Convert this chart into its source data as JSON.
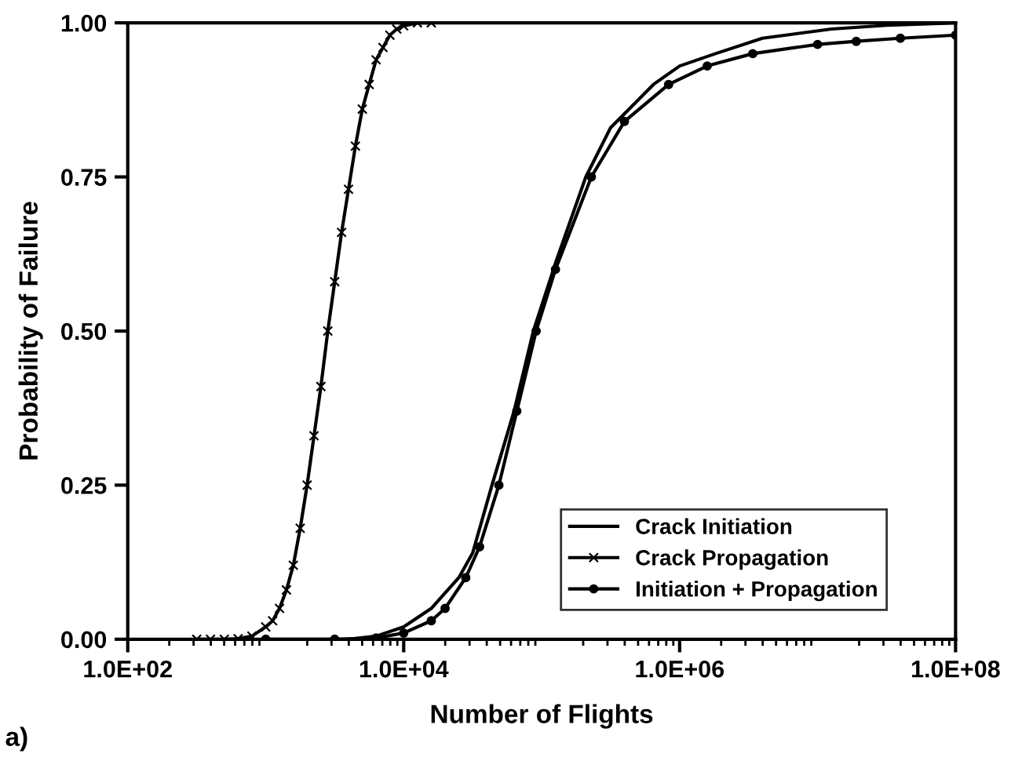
{
  "chart_data": {
    "type": "line",
    "xlabel": "Number of Flights",
    "ylabel": "Probability of Failure",
    "log": "x",
    "xlim": [
      100,
      100000000
    ],
    "xticks": [
      {
        "value": 100,
        "label": "1.0E+02"
      },
      {
        "value": 10000,
        "label": "1.0E+04"
      },
      {
        "value": 1000000,
        "label": "1.0E+06"
      },
      {
        "value": 100000000,
        "label": "1.0E+08"
      }
    ],
    "ylim": [
      0,
      1
    ],
    "yticks": [
      {
        "value": 0,
        "label": "0.00"
      },
      {
        "value": 0.25,
        "label": "0.25"
      },
      {
        "value": 0.5,
        "label": "0.50"
      },
      {
        "value": 0.75,
        "label": "0.75"
      },
      {
        "value": 1,
        "label": "1.00"
      }
    ],
    "grid": false,
    "legend": "bottom right",
    "line_style": "solid",
    "annotations": [
      "a)"
    ],
    "series": [
      {
        "name": "Crack Initiation",
        "color": "#000000",
        "marker": "none",
        "x": [
          3981,
          6310,
          10000,
          15849,
          25119,
          31623,
          43652,
          63096,
          87096,
          125893,
          208930,
          316228,
          645654,
          1000000,
          1819701,
          3981072,
          12589254,
          31622777,
          100000000
        ],
        "values": [
          0,
          0.005,
          0.02,
          0.05,
          0.1,
          0.14,
          0.25,
          0.37,
          0.5,
          0.61,
          0.75,
          0.83,
          0.9,
          0.93,
          0.95,
          0.975,
          0.99,
          0.996,
          1.0
        ]
      },
      {
        "name": "Crack Propagation",
        "color": "#000000",
        "marker": "cross",
        "x": [
          316,
          398,
          501,
          631,
          794,
          1000,
          1122,
          1259,
          1413,
          1585,
          1778,
          1995,
          2239,
          2512,
          2818,
          3162,
          3548,
          3981,
          4467,
          5012,
          5623,
          6310,
          7079,
          7943,
          8913,
          10000,
          12589,
          15849
        ],
        "values": [
          0,
          0,
          0,
          0.001,
          0.005,
          0.02,
          0.03,
          0.05,
          0.08,
          0.12,
          0.18,
          0.25,
          0.33,
          0.41,
          0.5,
          0.58,
          0.66,
          0.73,
          0.8,
          0.86,
          0.9,
          0.94,
          0.96,
          0.98,
          0.99,
          0.995,
          1.0,
          1.0
        ]
      },
      {
        "name": "Initiation + Propagation",
        "color": "#000000",
        "marker": "circle",
        "x": [
          1000,
          3162,
          6310,
          10000,
          15849,
          19953,
          28184,
          35481,
          48978,
          66069,
          91201,
          125893,
          229087,
          398107,
          831764,
          1584893,
          3388442,
          10000000,
          19054607,
          39810717,
          100000000
        ],
        "values": [
          0,
          0,
          0.002,
          0.01,
          0.03,
          0.05,
          0.1,
          0.15,
          0.25,
          0.37,
          0.5,
          0.6,
          0.75,
          0.84,
          0.9,
          0.93,
          0.95,
          0.965,
          0.97,
          0.975,
          0.98
        ]
      }
    ]
  }
}
